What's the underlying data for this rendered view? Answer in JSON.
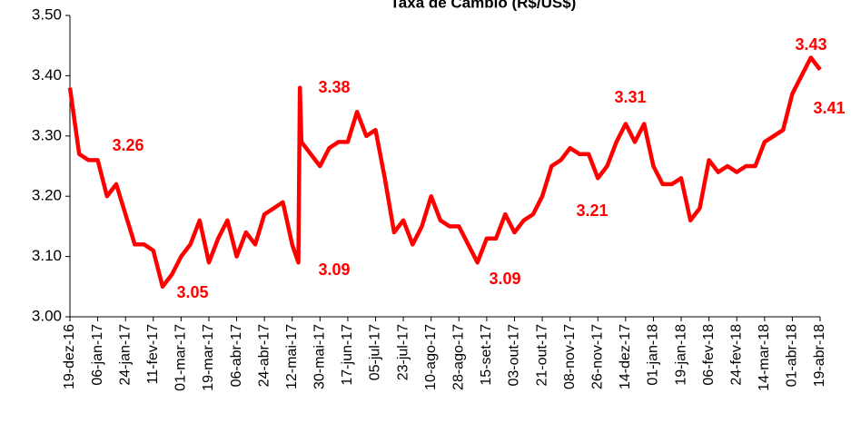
{
  "chart_data": {
    "type": "line",
    "title": "Taxa de Câmbio (R$/US$)",
    "x": [
      "19-dez-16",
      "25-dez-16",
      "31-dez-16",
      "06-jan-17",
      "12-jan-17",
      "18-jan-17",
      "24-jan-17",
      "30-jan-17",
      "05-fev-17",
      "11-fev-17",
      "17-fev-17",
      "23-fev-17",
      "01-mar-17",
      "07-mar-17",
      "13-mar-17",
      "19-mar-17",
      "25-mar-17",
      "31-mar-17",
      "06-abr-17",
      "12-abr-17",
      "18-abr-17",
      "24-abr-17",
      "30-abr-17",
      "06-mai-17",
      "12-mai-17",
      "16-mai-17",
      "17-mai-17",
      "18-mai-17",
      "24-mai-17",
      "30-mai-17",
      "05-jun-17",
      "11-jun-17",
      "17-jun-17",
      "23-jun-17",
      "29-jun-17",
      "05-jul-17",
      "11-jul-17",
      "17-jul-17",
      "23-jul-17",
      "29-jul-17",
      "04-ago-17",
      "10-ago-17",
      "16-ago-17",
      "22-ago-17",
      "28-ago-17",
      "03-set-17",
      "09-set-17",
      "15-set-17",
      "21-set-17",
      "27-set-17",
      "03-out-17",
      "09-out-17",
      "15-out-17",
      "21-out-17",
      "27-out-17",
      "02-nov-17",
      "08-nov-17",
      "14-nov-17",
      "20-nov-17",
      "26-nov-17",
      "02-dez-17",
      "08-dez-17",
      "14-dez-17",
      "20-dez-17",
      "26-dez-17",
      "01-jan-18",
      "07-jan-18",
      "13-jan-18",
      "19-jan-18",
      "25-jan-18",
      "31-jan-18",
      "06-fev-18",
      "12-fev-18",
      "18-fev-18",
      "24-fev-18",
      "02-mar-18",
      "08-mar-18",
      "14-mar-18",
      "20-mar-18",
      "26-mar-18",
      "01-abr-18",
      "07-abr-18",
      "13-abr-18",
      "19-abr-18"
    ],
    "series": [
      {
        "color": "#ff0000",
        "values": [
          3.38,
          3.27,
          3.26,
          3.26,
          3.2,
          3.22,
          3.17,
          3.12,
          3.12,
          3.11,
          3.05,
          3.07,
          3.1,
          3.12,
          3.16,
          3.09,
          3.13,
          3.16,
          3.1,
          3.14,
          3.12,
          3.17,
          3.18,
          3.19,
          3.12,
          3.09,
          3.38,
          3.29,
          3.27,
          3.25,
          3.28,
          3.29,
          3.29,
          3.34,
          3.3,
          3.31,
          3.23,
          3.14,
          3.16,
          3.12,
          3.15,
          3.2,
          3.16,
          3.15,
          3.15,
          3.12,
          3.09,
          3.13,
          3.13,
          3.17,
          3.14,
          3.16,
          3.17,
          3.2,
          3.25,
          3.26,
          3.28,
          3.27,
          3.27,
          3.23,
          3.25,
          3.29,
          3.32,
          3.29,
          3.32,
          3.25,
          3.22,
          3.22,
          3.23,
          3.16,
          3.18,
          3.26,
          3.24,
          3.25,
          3.24,
          3.25,
          3.25,
          3.29,
          3.3,
          3.31,
          3.37,
          3.4,
          3.43,
          3.41
        ]
      }
    ],
    "annotations": [
      3.26,
      3.38,
      3.09,
      3.05,
      3.09,
      3.31,
      3.21,
      3.43,
      3.41
    ],
    "xlim": [
      "19-dez-16",
      "19-abr-18"
    ],
    "xticks": [
      "19-dez-16",
      "06-jan-17",
      "24-jan-17",
      "11-fev-17",
      "01-mar-17",
      "19-mar-17",
      "06-abr-17",
      "24-abr-17",
      "12-mai-17",
      "30-mai-17",
      "17-jun-17",
      "05-jul-17",
      "23-jul-17",
      "10-ago-17",
      "28-ago-17",
      "15-set-17",
      "03-out-17",
      "21-out-17",
      "08-nov-17",
      "26-nov-17",
      "14-dez-17",
      "01-jan-18",
      "19-jan-18",
      "06-fev-18",
      "24-fev-18",
      "14-mar-18",
      "01-abr-18",
      "19-abr-18"
    ],
    "ylim": [
      3.0,
      3.5
    ],
    "yticks": [
      {
        "value": 3.0,
        "label": "3.00"
      },
      {
        "value": 3.1,
        "label": "3.10"
      },
      {
        "value": 3.2,
        "label": "3.20"
      },
      {
        "value": 3.3,
        "label": "3.30"
      },
      {
        "value": 3.4,
        "label": "3.40"
      },
      {
        "value": 3.5,
        "label": "3.50"
      }
    ],
    "grid": false
  }
}
